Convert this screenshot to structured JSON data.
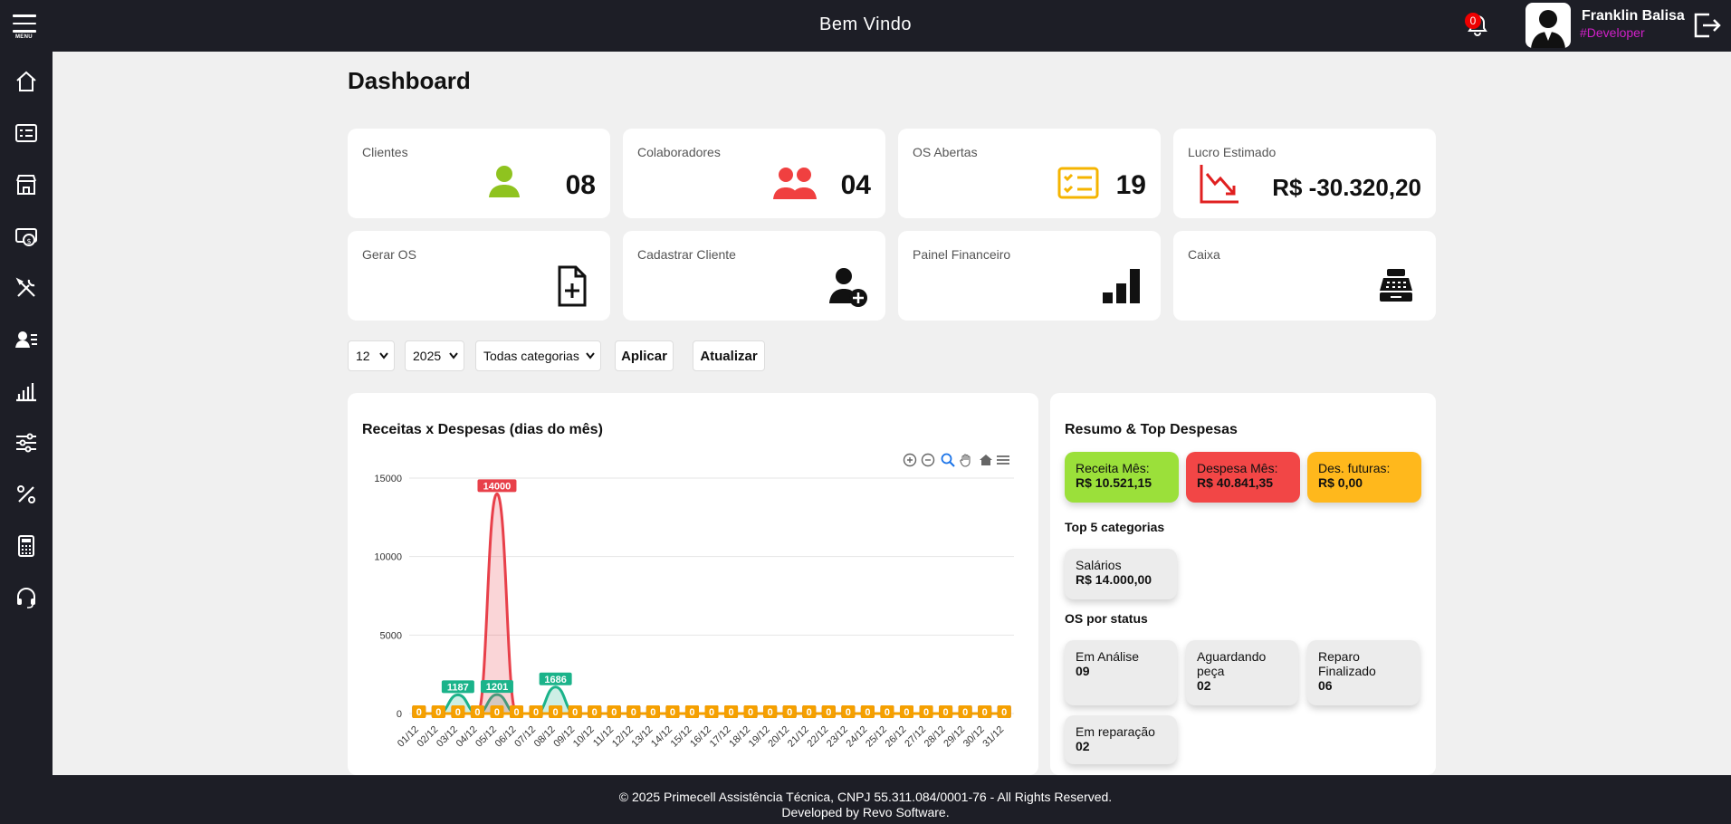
{
  "header": {
    "menu_label": "MENU",
    "title": "Bem Vindo",
    "notification_count": "0",
    "user_name": "Franklin Balisa",
    "user_role": "#Developer"
  },
  "sidebar": {
    "items": [
      "home-icon",
      "checklist-icon",
      "store-icon",
      "money-icon",
      "tools-icon",
      "user-list-icon",
      "bar-chart-icon",
      "sliders-icon",
      "percent-icon",
      "calculator-icon",
      "headset-icon"
    ]
  },
  "page_title": "Dashboard",
  "stats": [
    {
      "label": "Clientes",
      "value": "08",
      "icon": "user-icon",
      "color": "#8fc31f"
    },
    {
      "label": "Colaboradores",
      "value": "04",
      "icon": "users-icon",
      "color": "#f04040"
    },
    {
      "label": "OS Abertas",
      "value": "19",
      "icon": "checklist-icon",
      "color": "#f5b400"
    },
    {
      "label": "Lucro Estimado",
      "value": "R$ -30.320,20",
      "icon": "trend-down-icon",
      "color": "#e02020"
    }
  ],
  "shortcuts": [
    {
      "label": "Gerar OS",
      "icon": "file-add-icon"
    },
    {
      "label": "Cadastrar Cliente",
      "icon": "user-add-icon"
    },
    {
      "label": "Painel Financeiro",
      "icon": "signal-bars-icon"
    },
    {
      "label": "Caixa",
      "icon": "cash-register-icon"
    }
  ],
  "filters": {
    "month": "12",
    "year": "2025",
    "category": "Todas categorias",
    "apply_label": "Aplicar",
    "refresh_label": "Atualizar"
  },
  "chart_data": {
    "type": "area",
    "title": "Receitas x Despesas (dias do mês)",
    "x": [
      "01/12",
      "02/12",
      "03/12",
      "04/12",
      "05/12",
      "06/12",
      "07/12",
      "08/12",
      "09/12",
      "10/12",
      "11/12",
      "12/12",
      "13/12",
      "14/12",
      "15/12",
      "16/12",
      "17/12",
      "18/12",
      "19/12",
      "20/12",
      "21/12",
      "22/12",
      "23/12",
      "24/12",
      "25/12",
      "26/12",
      "27/12",
      "28/12",
      "29/12",
      "30/12",
      "31/12"
    ],
    "ylim": [
      0,
      15000
    ],
    "yticks": [
      0,
      5000,
      10000,
      15000
    ],
    "series": [
      {
        "color": "#1bb38a",
        "values": [
          0,
          0,
          1187,
          0,
          1201,
          0,
          0,
          1686,
          0,
          0,
          0,
          0,
          0,
          0,
          0,
          0,
          0,
          0,
          0,
          0,
          0,
          0,
          0,
          0,
          0,
          0,
          0,
          0,
          0,
          0,
          0
        ]
      },
      {
        "color": "#e8404a",
        "values": [
          0,
          0,
          0,
          0,
          14000,
          0,
          0,
          0,
          0,
          0,
          0,
          0,
          0,
          0,
          0,
          0,
          0,
          0,
          0,
          0,
          0,
          0,
          0,
          0,
          0,
          0,
          0,
          0,
          0,
          0,
          0
        ]
      },
      {
        "color": "#f5a000",
        "values": [
          0,
          0,
          0,
          0,
          0,
          0,
          0,
          0,
          0,
          0,
          0,
          0,
          0,
          0,
          0,
          0,
          0,
          0,
          0,
          0,
          0,
          0,
          0,
          0,
          0,
          0,
          0,
          0,
          0,
          0,
          0
        ]
      }
    ]
  },
  "summary": {
    "title": "Resumo & Top Despesas",
    "revenue_label": "Receita Mês:",
    "revenue_value": "R$ 10.521,15",
    "revenue_color": "#9be03a",
    "expense_label": "Despesa Mês:",
    "expense_value": "R$ 40.841,35",
    "expense_color": "#f24646",
    "future_label": "Des. futuras:",
    "future_value": "R$ 0,00",
    "future_color": "#ffb81c",
    "top_title": "Top 5 categorias",
    "top_categories": [
      {
        "label": "Salários",
        "value": "R$ 14.000,00"
      }
    ],
    "status_title": "OS por status",
    "status": [
      {
        "label": "Em Análise",
        "value": "09"
      },
      {
        "label": "Aguardando peça",
        "value": "02"
      },
      {
        "label": "Reparo Finalizado",
        "value": "06"
      },
      {
        "label": "Em reparação",
        "value": "02"
      }
    ]
  },
  "footer": {
    "line1": "© 2025 Primecell Assistência Técnica, CNPJ 55.311.084/0001-76 - All Rights Reserved.",
    "line2": "Developed by Revo Software."
  }
}
